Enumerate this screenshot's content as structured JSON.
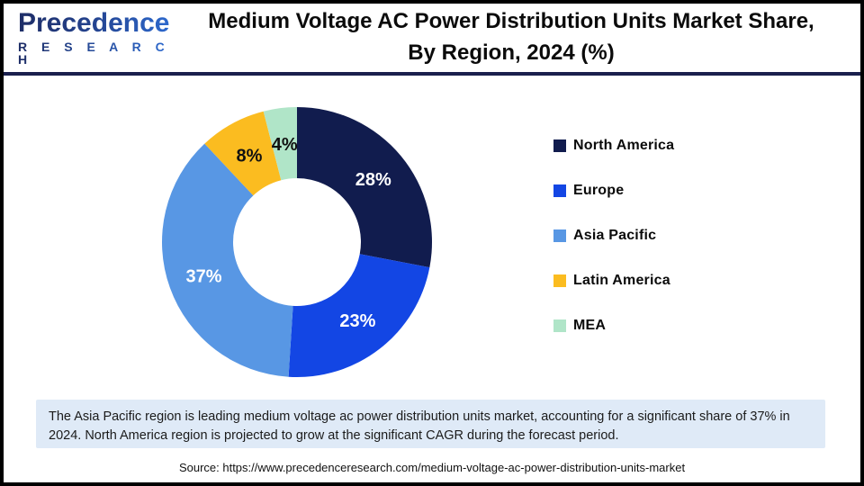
{
  "header": {
    "logo": {
      "brand": "Precedence",
      "subtitle": "R E S E A R C H"
    },
    "title_line1": "Medium Voltage AC Power Distribution Units Market Share,",
    "title_line2": "By Region, 2024 (%)"
  },
  "chart_data": {
    "type": "pie",
    "donut": true,
    "title": "Medium Voltage AC Power Distribution Units Market Share, By Region, 2024 (%)",
    "start_angle_deg": 0,
    "direction": "clockwise",
    "legend_position": "right",
    "inner_radius_ratio": 0.47,
    "segments": [
      {
        "name": "North America",
        "value": 28,
        "label": "28%",
        "color": "#111C4E",
        "label_color": "#FFFFFF"
      },
      {
        "name": "Europe",
        "value": 23,
        "label": "23%",
        "color": "#1346E4",
        "label_color": "#FFFFFF"
      },
      {
        "name": "Asia Pacific",
        "value": 37,
        "label": "37%",
        "color": "#5897E4",
        "label_color": "#FFFFFF"
      },
      {
        "name": "Latin America",
        "value": 8,
        "label": "8%",
        "color": "#FBBC20",
        "label_color": "#111111"
      },
      {
        "name": "MEA",
        "value": 4,
        "label": "4%",
        "color": "#B0E5C8",
        "label_color": "#111111"
      }
    ]
  },
  "note": {
    "text": "The Asia Pacific region is leading medium voltage ac power distribution units market, accounting for a significant share of 37% in 2024. North America region is projected to grow at the significant CAGR during the forecast period."
  },
  "source": {
    "text": "Source: https://www.precedenceresearch.com/medium-voltage-ac-power-distribution-units-market"
  },
  "colors": {
    "frame_border": "#000000",
    "header_rule_navy": "#1A1F4D",
    "note_background": "#DFEAF7",
    "logo_navy": "#1E2D66",
    "logo_blue": "#2E6FD8"
  }
}
